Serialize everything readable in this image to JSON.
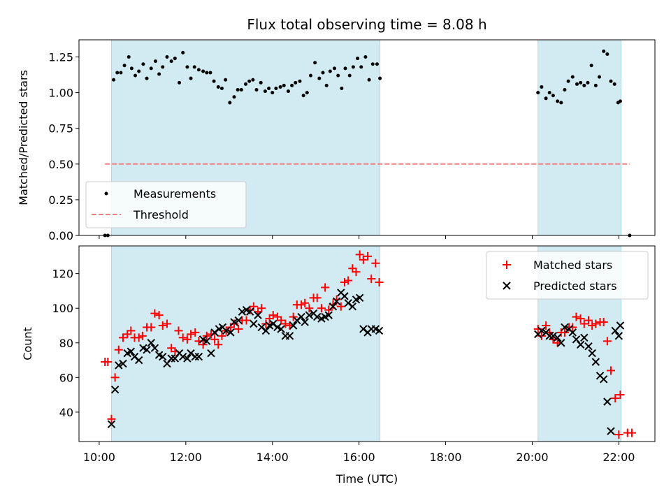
{
  "title": "Flux total observing time = 8.08 h",
  "colors": {
    "band": "#add8e6",
    "measurement": "#000000",
    "threshold": "#f08080",
    "matched": "#ff0000",
    "predicted": "#000000"
  },
  "chart_data": [
    {
      "type": "scatter",
      "ylabel": "Matched/Predicted stars",
      "ylim": [
        0,
        1.37
      ],
      "yticks": [
        0.0,
        0.25,
        0.5,
        0.75,
        1.0,
        1.25
      ],
      "ytick_labels": [
        "0.00",
        "0.25",
        "0.50",
        "0.75",
        "1.00",
        "1.25"
      ],
      "xlim": [
        "09:32",
        "22:50"
      ],
      "shaded_intervals": [
        [
          "10:17",
          "16:29"
        ],
        [
          "20:08",
          "22:03"
        ]
      ],
      "legend": {
        "placement": "lower-left",
        "entries": [
          "Measurements",
          "Threshold"
        ]
      },
      "threshold": {
        "name": "Threshold",
        "value": 0.5,
        "x_range": [
          "10:08",
          "22:15"
        ],
        "style": "dashed"
      },
      "measurements": {
        "name": "Measurements",
        "x": [
          "10:08",
          "10:12",
          "10:20",
          "10:25",
          "10:30",
          "10:35",
          "10:41",
          "10:45",
          "10:50",
          "10:55",
          "11:01",
          "11:06",
          "11:12",
          "11:18",
          "11:23",
          "11:28",
          "11:34",
          "11:40",
          "11:45",
          "11:51",
          "11:56",
          "12:02",
          "12:07",
          "12:12",
          "12:18",
          "12:24",
          "12:29",
          "12:34",
          "12:39",
          "12:45",
          "12:50",
          "12:55",
          "13:01",
          "13:07",
          "13:12",
          "13:17",
          "13:23",
          "13:28",
          "13:33",
          "13:38",
          "13:44",
          "13:50",
          "13:55",
          "14:00",
          "14:05",
          "14:11",
          "14:16",
          "14:22",
          "14:27",
          "14:32",
          "14:38",
          "14:43",
          "14:48",
          "14:53",
          "14:59",
          "15:05",
          "15:10",
          "15:15",
          "15:20",
          "15:26",
          "15:31",
          "15:36",
          "15:41",
          "15:47",
          "15:52",
          "15:58",
          "16:03",
          "16:09",
          "16:14",
          "16:19",
          "16:25",
          "16:29",
          "20:08",
          "20:13",
          "20:19",
          "20:24",
          "20:29",
          "20:35",
          "20:40",
          "20:45",
          "20:50",
          "20:56",
          "21:02",
          "21:07",
          "21:12",
          "21:17",
          "21:22",
          "21:28",
          "21:33",
          "21:39",
          "21:44",
          "21:49",
          "21:54",
          "21:59",
          "22:02",
          "22:15"
        ],
        "y": [
          0.0,
          0.0,
          1.09,
          1.14,
          1.14,
          1.19,
          1.25,
          1.17,
          1.12,
          1.15,
          1.2,
          1.1,
          1.17,
          1.22,
          1.13,
          1.18,
          1.25,
          1.22,
          1.24,
          1.07,
          1.28,
          1.18,
          1.1,
          1.18,
          1.16,
          1.15,
          1.14,
          1.14,
          1.08,
          1.04,
          1.03,
          1.09,
          0.93,
          0.97,
          1.02,
          1.02,
          1.06,
          1.08,
          1.09,
          1.02,
          1.07,
          1.01,
          1.03,
          1.0,
          1.03,
          1.04,
          1.05,
          1.01,
          1.05,
          1.07,
          1.08,
          0.98,
          1.0,
          1.12,
          1.21,
          1.1,
          1.14,
          1.05,
          1.15,
          1.17,
          1.12,
          1.03,
          1.17,
          1.12,
          1.18,
          1.24,
          1.18,
          1.25,
          1.09,
          1.2,
          1.2,
          1.1,
          1.0,
          1.04,
          0.96,
          1.0,
          0.98,
          0.94,
          0.93,
          1.02,
          1.08,
          1.11,
          1.06,
          1.07,
          1.05,
          1.07,
          1.19,
          1.05,
          1.11,
          1.29,
          1.27,
          1.08,
          1.06,
          0.93,
          0.94,
          0.0
        ]
      }
    },
    {
      "type": "scatter",
      "ylabel": "Count",
      "xlabel": "Time (UTC)",
      "ylim": [
        23,
        136
      ],
      "yticks": [
        40,
        60,
        80,
        100,
        120
      ],
      "ytick_labels": [
        "40",
        "60",
        "80",
        "100",
        "120"
      ],
      "xlim": [
        "09:32",
        "22:50"
      ],
      "xticks": [
        "10:00",
        "12:00",
        "14:00",
        "16:00",
        "18:00",
        "20:00",
        "22:00"
      ],
      "shaded_intervals": [
        [
          "10:17",
          "16:29"
        ],
        [
          "20:08",
          "22:03"
        ]
      ],
      "legend": {
        "placement": "upper-right",
        "entries": [
          "Matched stars",
          "Predicted stars"
        ]
      },
      "series": [
        {
          "name": "Matched stars",
          "marker": "plus",
          "x": [
            "10:08",
            "10:12",
            "10:17",
            "10:22",
            "10:27",
            "10:33",
            "10:39",
            "10:44",
            "10:49",
            "10:55",
            "11:00",
            "11:06",
            "11:12",
            "11:17",
            "11:23",
            "11:28",
            "11:34",
            "11:40",
            "11:45",
            "11:50",
            "11:56",
            "12:02",
            "12:07",
            "12:13",
            "12:18",
            "12:24",
            "12:29",
            "12:35",
            "12:40",
            "12:45",
            "12:50",
            "12:56",
            "13:02",
            "13:07",
            "13:13",
            "13:18",
            "13:24",
            "13:29",
            "13:34",
            "13:40",
            "13:45",
            "13:51",
            "13:56",
            "14:01",
            "14:07",
            "14:12",
            "14:18",
            "14:24",
            "14:29",
            "14:34",
            "14:40",
            "14:45",
            "14:51",
            "14:57",
            "15:02",
            "15:08",
            "15:13",
            "15:18",
            "15:24",
            "15:29",
            "15:35",
            "15:40",
            "15:45",
            "15:51",
            "15:56",
            "16:01",
            "16:06",
            "16:12",
            "16:17",
            "16:23",
            "16:28",
            "20:08",
            "20:13",
            "20:19",
            "20:24",
            "20:29",
            "20:35",
            "20:40",
            "20:45",
            "20:51",
            "20:56",
            "21:01",
            "21:07",
            "21:12",
            "21:18",
            "21:23",
            "21:28",
            "21:34",
            "21:39",
            "21:44",
            "21:49",
            "21:55",
            "22:00",
            "22:02",
            "22:12",
            "22:18"
          ],
          "y": [
            69,
            69,
            36,
            60,
            76,
            83,
            85,
            87,
            83,
            83,
            84,
            89,
            89,
            97,
            96,
            90,
            91,
            77,
            75,
            87,
            83,
            82,
            85,
            86,
            81,
            79,
            84,
            85,
            82,
            79,
            84,
            87,
            89,
            91,
            88,
            93,
            93,
            99,
            101,
            98,
            100,
            91,
            94,
            96,
            95,
            93,
            91,
            90,
            95,
            102,
            102,
            103,
            100,
            106,
            106,
            100,
            112,
            99,
            102,
            105,
            101,
            115,
            116,
            123,
            121,
            131,
            128,
            130,
            117,
            126,
            115,
            88,
            84,
            90,
            86,
            82,
            80,
            86,
            86,
            89,
            89,
            95,
            94,
            91,
            93,
            90,
            91,
            92,
            92,
            81,
            64,
            48,
            27,
            50,
            28,
            28
          ]
        },
        {
          "name": "Predicted stars",
          "marker": "x",
          "x": [
            "10:17",
            "10:22",
            "10:27",
            "10:33",
            "10:39",
            "10:44",
            "10:49",
            "10:55",
            "11:01",
            "11:06",
            "11:12",
            "11:17",
            "11:23",
            "11:28",
            "11:34",
            "11:40",
            "11:45",
            "11:51",
            "11:56",
            "12:02",
            "12:07",
            "12:13",
            "12:18",
            "12:24",
            "12:29",
            "12:35",
            "12:40",
            "12:46",
            "12:51",
            "12:56",
            "13:02",
            "13:07",
            "13:13",
            "13:18",
            "13:24",
            "13:29",
            "13:34",
            "13:40",
            "13:45",
            "13:51",
            "13:56",
            "14:01",
            "14:07",
            "14:12",
            "14:18",
            "14:24",
            "14:29",
            "14:34",
            "14:40",
            "14:45",
            "14:51",
            "14:57",
            "15:02",
            "15:08",
            "15:13",
            "15:18",
            "15:24",
            "15:29",
            "15:35",
            "15:40",
            "15:45",
            "15:51",
            "15:56",
            "16:01",
            "16:06",
            "16:12",
            "16:17",
            "16:23",
            "16:28",
            "20:08",
            "20:13",
            "20:19",
            "20:24",
            "20:29",
            "20:35",
            "20:40",
            "20:45",
            "20:51",
            "20:56",
            "21:01",
            "21:07",
            "21:12",
            "21:18",
            "21:23",
            "21:28",
            "21:34",
            "21:39",
            "21:44",
            "21:49",
            "21:55",
            "22:00",
            "22:02"
          ],
          "y": [
            33,
            53,
            67,
            68,
            74,
            75,
            72,
            70,
            77,
            76,
            80,
            77,
            73,
            72,
            68,
            71,
            71,
            74,
            72,
            71,
            74,
            72,
            72,
            82,
            81,
            74,
            86,
            88,
            89,
            87,
            86,
            92,
            93,
            98,
            99,
            98,
            91,
            96,
            89,
            87,
            90,
            91,
            89,
            88,
            84,
            84,
            90,
            93,
            95,
            92,
            96,
            97,
            95,
            94,
            95,
            96,
            101,
            104,
            109,
            107,
            103,
            101,
            105,
            106,
            88,
            86,
            88,
            88,
            87,
            85,
            87,
            86,
            84,
            84,
            83,
            80,
            89,
            88,
            86,
            82,
            79,
            83,
            78,
            74,
            69,
            61,
            59,
            46,
            29,
            87,
            84,
            90
          ]
        }
      ]
    }
  ]
}
